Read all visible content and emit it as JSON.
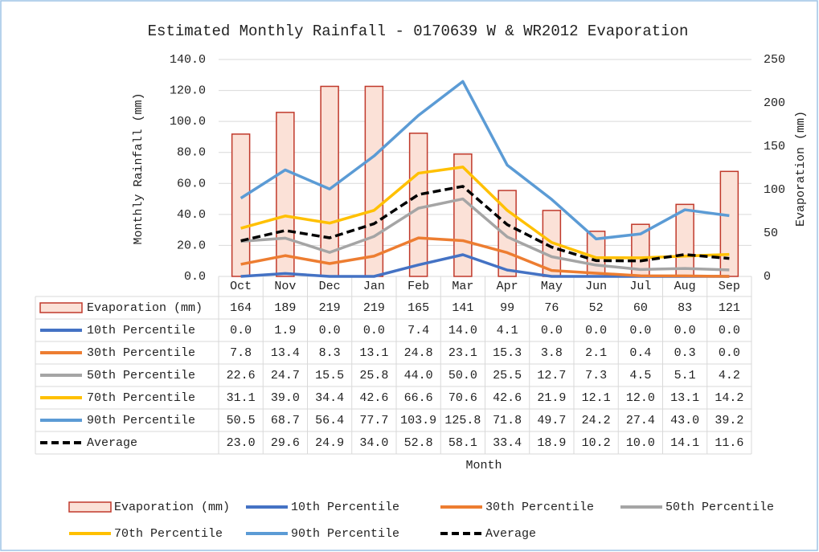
{
  "chart_data": {
    "type": "bar_line",
    "title": "Estimated Monthly Rainfall - 0170639 W & WR2012 Evaporation",
    "xlabel": "Month",
    "ylabel": "Monthly Rainfall (mm)",
    "y2label": "Evaporation (mm)",
    "categories": [
      "Oct",
      "Nov",
      "Dec",
      "Jan",
      "Feb",
      "Mar",
      "Apr",
      "May",
      "Jun",
      "Jul",
      "Aug",
      "Sep"
    ],
    "ylim": [
      0,
      140
    ],
    "yticks": [
      {
        "value": 0,
        "label": "0.0"
      },
      {
        "value": 20,
        "label": "20.0"
      },
      {
        "value": 40,
        "label": "40.0"
      },
      {
        "value": 60,
        "label": "60.0"
      },
      {
        "value": 80,
        "label": "80.0"
      },
      {
        "value": 100,
        "label": "100.0"
      },
      {
        "value": 120,
        "label": "120.0"
      },
      {
        "value": 140,
        "label": "140.0"
      }
    ],
    "y2lim": [
      0,
      250
    ],
    "y2ticks": [
      0,
      50,
      100,
      150,
      200,
      250
    ],
    "series": [
      {
        "name": "Evaporation (mm)",
        "type": "bar",
        "axis": "y2",
        "color": "#fbe1d7",
        "edgecolor": "#c0392b",
        "values": [
          164,
          189,
          219,
          219,
          165,
          141,
          99,
          76,
          52,
          60,
          83,
          121
        ]
      },
      {
        "name": "10th Percentile",
        "type": "line",
        "color": "#4472c4",
        "values": [
          0.0,
          1.9,
          0.0,
          0.0,
          7.4,
          14.0,
          4.1,
          0.0,
          0.0,
          0.0,
          0.0,
          0.0
        ],
        "value_labels": [
          "0.0",
          "1.9",
          "0.0",
          "0.0",
          "7.4",
          "14.0",
          "4.1",
          "0.0",
          "0.0",
          "0.0",
          "0.0",
          "0.0"
        ]
      },
      {
        "name": "30th Percentile",
        "type": "line",
        "color": "#ed7d31",
        "values": [
          7.8,
          13.4,
          8.3,
          13.1,
          24.8,
          23.1,
          15.3,
          3.8,
          2.1,
          0.4,
          0.3,
          0.0
        ],
        "value_labels": [
          "7.8",
          "13.4",
          "8.3",
          "13.1",
          "24.8",
          "23.1",
          "15.3",
          "3.8",
          "2.1",
          "0.4",
          "0.3",
          "0.0"
        ]
      },
      {
        "name": "50th Percentile",
        "type": "line",
        "color": "#a5a5a5",
        "values": [
          22.6,
          24.7,
          15.5,
          25.8,
          44.0,
          50.0,
          25.5,
          12.7,
          7.3,
          4.5,
          5.1,
          4.2
        ],
        "value_labels": [
          "22.6",
          "24.7",
          "15.5",
          "25.8",
          "44.0",
          "50.0",
          "25.5",
          "12.7",
          "7.3",
          "4.5",
          "5.1",
          "4.2"
        ]
      },
      {
        "name": "70th Percentile",
        "type": "line",
        "color": "#ffc000",
        "values": [
          31.1,
          39.0,
          34.4,
          42.6,
          66.6,
          70.6,
          42.6,
          21.9,
          12.1,
          12.0,
          13.1,
          14.2
        ],
        "value_labels": [
          "31.1",
          "39.0",
          "34.4",
          "42.6",
          "66.6",
          "70.6",
          "42.6",
          "21.9",
          "12.1",
          "12.0",
          "13.1",
          "14.2"
        ]
      },
      {
        "name": "90th Percentile",
        "type": "line",
        "color": "#5b9bd5",
        "values": [
          50.5,
          68.7,
          56.4,
          77.7,
          103.9,
          125.8,
          71.8,
          49.7,
          24.2,
          27.4,
          43.0,
          39.2
        ],
        "value_labels": [
          "50.5",
          "68.7",
          "56.4",
          "77.7",
          "103.9",
          "125.8",
          "71.8",
          "49.7",
          "24.2",
          "27.4",
          "43.0",
          "39.2"
        ]
      },
      {
        "name": "Average",
        "type": "line",
        "color": "#000000",
        "dashed": true,
        "values": [
          23.0,
          29.6,
          24.9,
          34.0,
          52.8,
          58.1,
          33.4,
          18.9,
          10.2,
          10.0,
          14.1,
          11.6
        ],
        "value_labels": [
          "23.0",
          "29.6",
          "24.9",
          "34.0",
          "52.8",
          "58.1",
          "33.4",
          "18.9",
          "10.2",
          "10.0",
          "14.1",
          "11.6"
        ]
      }
    ]
  }
}
